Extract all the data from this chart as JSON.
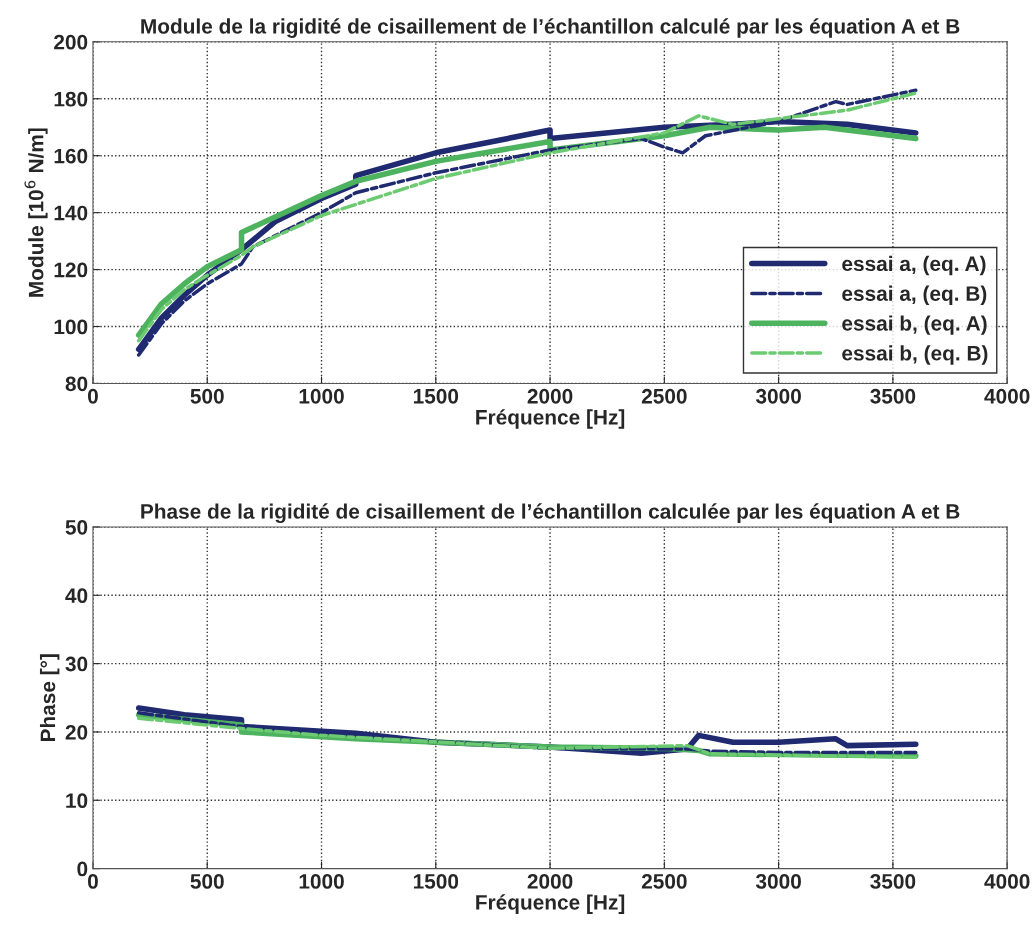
{
  "chart_data": [
    {
      "type": "line",
      "title": "Module de la rigidité de cisaillement de l’échantillon calculé par les équation A et B",
      "xlabel": "Fréquence [Hz]",
      "ylabel": "Module [10$^{6}$ N/m]",
      "xlim": [
        0,
        4000
      ],
      "xticks": [
        0,
        500,
        1000,
        1500,
        2000,
        2500,
        3000,
        3500,
        4000
      ],
      "ylim": [
        80,
        200
      ],
      "yticks": [
        80,
        100,
        120,
        140,
        160,
        180,
        200
      ],
      "grid": true,
      "legend": "bottom right",
      "series": [
        {
          "name": "essai a, (eq. A)",
          "color": "#1f2a70",
          "line_style": "solid",
          "x": [
            200,
            300,
            400,
            500,
            650,
            800,
            1000,
            1150,
            1150,
            1500,
            2000,
            2000,
            2500,
            2800,
            3000,
            3300,
            3600
          ],
          "values": [
            92,
            103,
            111,
            118,
            127,
            137,
            145,
            150,
            153,
            161,
            169,
            166,
            170,
            171,
            172,
            171,
            168
          ]
        },
        {
          "name": "essai a, (eq. B)",
          "color": "#1f2a70",
          "line_style": "dashed",
          "x": [
            200,
            300,
            400,
            500,
            650,
            700,
            1000,
            1150,
            1500,
            2000,
            2400,
            2500,
            2580,
            2680,
            3000,
            3250,
            3300,
            3600
          ],
          "values": [
            90,
            101,
            109,
            115,
            122,
            128,
            140,
            147,
            154,
            162,
            166,
            163,
            161,
            167,
            172,
            179,
            178,
            183
          ]
        },
        {
          "name": "essai b, (eq. A)",
          "color": "#4db35e",
          "line_style": "solid",
          "x": [
            200,
            300,
            400,
            500,
            650,
            650,
            1000,
            1150,
            1500,
            2000,
            2000,
            2500,
            2700,
            3000,
            3200,
            3600
          ],
          "values": [
            97,
            108,
            115,
            121,
            127,
            133,
            146,
            151,
            158,
            165,
            162,
            167,
            170,
            169,
            170,
            166
          ]
        },
        {
          "name": "essai b, (eq. B)",
          "color": "#6ccb70",
          "line_style": "dashed",
          "x": [
            200,
            300,
            400,
            500,
            650,
            700,
            1000,
            1500,
            2000,
            2500,
            2650,
            2800,
            3000,
            3300,
            3600
          ],
          "values": [
            95,
            106,
            113,
            118,
            125,
            128,
            139,
            152,
            161,
            168,
            174,
            171,
            173,
            176,
            182
          ]
        }
      ]
    },
    {
      "type": "line",
      "title": "Phase de la rigidité de cisaillement de l’échantillon calculée par les équation A et B",
      "xlabel": "Fréquence [Hz]",
      "ylabel": "Phase [°]",
      "xlim": [
        0,
        4000
      ],
      "xticks": [
        0,
        500,
        1000,
        1500,
        2000,
        2500,
        3000,
        3500,
        4000
      ],
      "ylim": [
        0,
        50
      ],
      "yticks": [
        0,
        10,
        20,
        30,
        40,
        50
      ],
      "grid": true,
      "series": [
        {
          "color": "#1f2a70",
          "line_style": "solid",
          "x": [
            200,
            400,
            650,
            650,
            1150,
            1500,
            2000,
            2400,
            2600,
            2650,
            2800,
            3000,
            3250,
            3300,
            3600
          ],
          "values": [
            23.5,
            22.5,
            21.8,
            20.8,
            19.8,
            18.5,
            17.8,
            16.9,
            17.5,
            19.5,
            18.5,
            18.5,
            19,
            18,
            18.2
          ]
        },
        {
          "color": "#1f2a70",
          "line_style": "dashed",
          "x": [
            200,
            600,
            1000,
            2000,
            2600,
            2700,
            3000,
            3600
          ],
          "values": [
            22.8,
            21,
            19.7,
            17.6,
            17.5,
            17.2,
            17,
            17
          ]
        },
        {
          "color": "#4db35e",
          "line_style": "solid",
          "x": [
            200,
            650,
            650,
            1150,
            2000,
            2500,
            2650,
            2700,
            3600
          ],
          "values": [
            22.5,
            21,
            20,
            19,
            17.8,
            17.6,
            17.3,
            16.8,
            16.5
          ]
        },
        {
          "color": "#6ccb70",
          "line_style": "dashed",
          "x": [
            200,
            650,
            1000,
            2000,
            2600,
            2700,
            3600
          ],
          "values": [
            22,
            20.5,
            19.5,
            17.6,
            18,
            16.8,
            16.3
          ]
        }
      ]
    }
  ]
}
